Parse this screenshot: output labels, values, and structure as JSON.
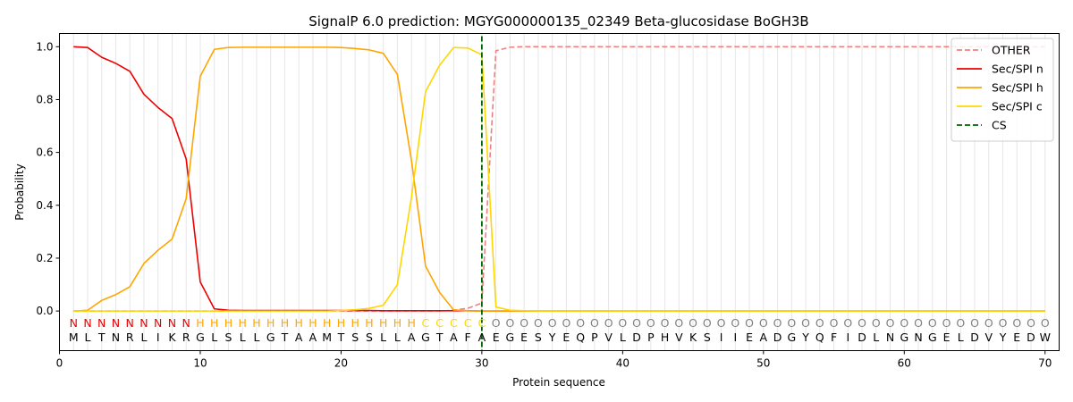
{
  "chart_data": {
    "type": "line",
    "title": "SignalP 6.0 prediction: MGYG000000135_02349 Beta-glucosidase BoGH3B",
    "xlabel": "Protein sequence",
    "ylabel": "Probability",
    "xlim": [
      0,
      71
    ],
    "ylim": [
      -0.15,
      1.05
    ],
    "xticks": [
      0,
      10,
      20,
      30,
      40,
      50,
      60,
      70
    ],
    "yticks": [
      0.0,
      0.2,
      0.4,
      0.6,
      0.8,
      1.0
    ],
    "vertical_grid": true,
    "legend_position": "top-right",
    "x": [
      1,
      2,
      3,
      4,
      5,
      6,
      7,
      8,
      9,
      10,
      11,
      12,
      13,
      14,
      15,
      16,
      17,
      18,
      19,
      20,
      21,
      22,
      23,
      24,
      25,
      26,
      27,
      28,
      29,
      30,
      31,
      32,
      33,
      34,
      35,
      36,
      37,
      38,
      39,
      40,
      41,
      42,
      43,
      44,
      45,
      46,
      47,
      48,
      49,
      50,
      51,
      52,
      53,
      54,
      55,
      56,
      57,
      58,
      59,
      60,
      61,
      62,
      63,
      64,
      65,
      66,
      67,
      68,
      69,
      70
    ],
    "sequence": [
      "M",
      "L",
      "T",
      "N",
      "R",
      "L",
      "I",
      "K",
      "R",
      "G",
      "L",
      "S",
      "L",
      "L",
      "G",
      "T",
      "A",
      "A",
      "M",
      "T",
      "S",
      "S",
      "L",
      "L",
      "A",
      "G",
      "T",
      "A",
      "F",
      "A",
      "E",
      "G",
      "E",
      "S",
      "Y",
      "E",
      "Q",
      "P",
      "V",
      "L",
      "D",
      "P",
      "H",
      "V",
      "K",
      "S",
      "I",
      "I",
      "E",
      "A",
      "D",
      "G",
      "Y",
      "Q",
      "F",
      "I",
      "D",
      "L",
      "N",
      "G",
      "N",
      "G",
      "E",
      "L",
      "D",
      "V",
      "Y",
      "E",
      "D",
      "W"
    ],
    "predicted_labels": [
      "N",
      "N",
      "N",
      "N",
      "N",
      "N",
      "N",
      "N",
      "N",
      "H",
      "H",
      "H",
      "H",
      "H",
      "H",
      "H",
      "H",
      "H",
      "H",
      "H",
      "H",
      "H",
      "H",
      "H",
      "H",
      "C",
      "C",
      "C",
      "C",
      "C",
      "O",
      "O",
      "O",
      "O",
      "O",
      "O",
      "O",
      "O",
      "O",
      "O",
      "O",
      "O",
      "O",
      "O",
      "O",
      "O",
      "O",
      "O",
      "O",
      "O",
      "O",
      "O",
      "O",
      "O",
      "O",
      "O",
      "O",
      "O",
      "O",
      "O",
      "O",
      "O",
      "O",
      "O",
      "O",
      "O",
      "O",
      "O",
      "O",
      "O"
    ],
    "label_colors": {
      "N": "#ee0000",
      "H": "#ffa500",
      "C": "#ffd700",
      "O": "#808080"
    },
    "series": [
      {
        "name": "OTHER",
        "color": "#f08080",
        "dash": true,
        "values": [
          0,
          0,
          0,
          0,
          0,
          0,
          0,
          0,
          0,
          0,
          0,
          0,
          0,
          0,
          0,
          0,
          0,
          0,
          0,
          0,
          0,
          0,
          0,
          0,
          0,
          0,
          0,
          0.003,
          0.01,
          0.03,
          0.985,
          0.998,
          1,
          1,
          1,
          1,
          1,
          1,
          1,
          1,
          1,
          1,
          1,
          1,
          1,
          1,
          1,
          1,
          1,
          1,
          1,
          1,
          1,
          1,
          1,
          1,
          1,
          1,
          1,
          1,
          1,
          1,
          1,
          1,
          1,
          1,
          1,
          1,
          1,
          1
        ]
      },
      {
        "name": "Sec/SPI n",
        "color": "#ee0000",
        "dash": false,
        "values": [
          1.0,
          0.997,
          0.96,
          0.937,
          0.907,
          0.82,
          0.77,
          0.728,
          0.575,
          0.11,
          0.008,
          0.003,
          0.002,
          0.002,
          0.002,
          0.002,
          0.002,
          0.002,
          0.002,
          0.002,
          0.002,
          0.002,
          0.001,
          0.001,
          0.001,
          0.001,
          0.001,
          0.001,
          0.001,
          0,
          0,
          0,
          0,
          0,
          0,
          0,
          0,
          0,
          0,
          0,
          0,
          0,
          0,
          0,
          0,
          0,
          0,
          0,
          0,
          0,
          0,
          0,
          0,
          0,
          0,
          0,
          0,
          0,
          0,
          0,
          0,
          0,
          0,
          0,
          0,
          0,
          0,
          0,
          0,
          0
        ]
      },
      {
        "name": "Sec/SPI h",
        "color": "#ffa500",
        "dash": false,
        "values": [
          0,
          0.003,
          0.04,
          0.062,
          0.092,
          0.18,
          0.23,
          0.272,
          0.425,
          0.888,
          0.99,
          0.997,
          0.998,
          0.998,
          0.998,
          0.998,
          0.998,
          0.998,
          0.998,
          0.997,
          0.993,
          0.988,
          0.975,
          0.895,
          0.57,
          0.17,
          0.07,
          0.004,
          0.001,
          0,
          0,
          0,
          0,
          0,
          0,
          0,
          0,
          0,
          0,
          0,
          0,
          0,
          0,
          0,
          0,
          0,
          0,
          0,
          0,
          0,
          0,
          0,
          0,
          0,
          0,
          0,
          0,
          0,
          0,
          0,
          0,
          0,
          0,
          0,
          0,
          0,
          0,
          0,
          0,
          0
        ]
      },
      {
        "name": "Sec/SPI c",
        "color": "#ffd700",
        "dash": false,
        "values": [
          0,
          0,
          0,
          0,
          0,
          0,
          0,
          0,
          0,
          0,
          0,
          0,
          0,
          0,
          0,
          0,
          0,
          0,
          0,
          0.002,
          0.005,
          0.01,
          0.022,
          0.1,
          0.43,
          0.83,
          0.93,
          0.997,
          0.995,
          0.97,
          0.015,
          0.003,
          0.001,
          0,
          0,
          0,
          0,
          0,
          0,
          0,
          0,
          0,
          0,
          0,
          0,
          0,
          0,
          0,
          0,
          0,
          0,
          0,
          0,
          0,
          0,
          0,
          0,
          0,
          0,
          0,
          0,
          0,
          0,
          0,
          0,
          0,
          0,
          0,
          0,
          0
        ]
      }
    ],
    "cleavage_site": {
      "name": "CS",
      "x": 30,
      "color": "#006400"
    }
  }
}
